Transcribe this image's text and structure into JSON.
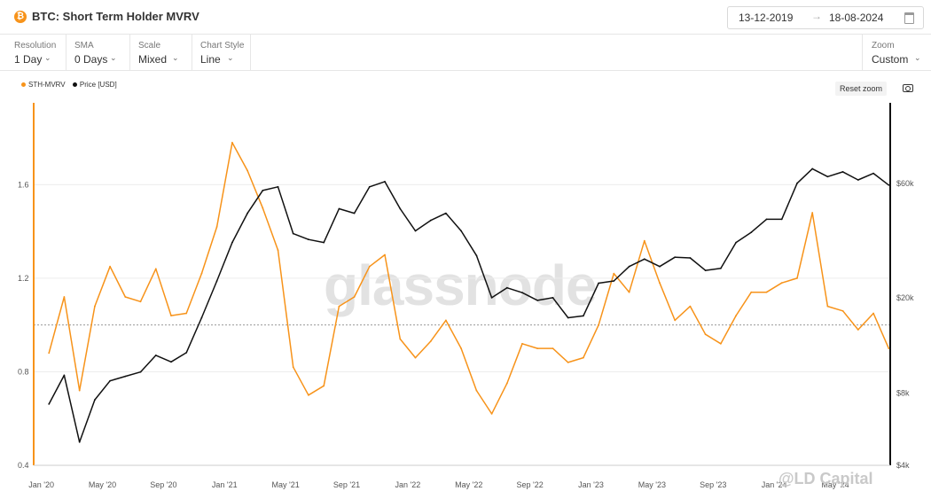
{
  "header": {
    "logo": "₿",
    "title": "BTC: Short Term Holder MVRV",
    "date_start": "13-12-2019",
    "date_arrow": "→",
    "date_end": "18-08-2024",
    "calendar_icon": "calendar-icon"
  },
  "controls": [
    {
      "label": "Resolution",
      "value": "1 Day"
    },
    {
      "label": "SMA",
      "value": "0 Days"
    },
    {
      "label": "Scale",
      "value": "Mixed"
    },
    {
      "label": "Chart Style",
      "value": "Line"
    }
  ],
  "zoom": {
    "label": "Zoom",
    "value": "Custom"
  },
  "reset_zoom": "Reset zoom",
  "watermark": "glassnode",
  "credit": "@LD Capital",
  "chart_data": {
    "type": "line",
    "title": "BTC: Short Term Holder MVRV",
    "x_ticks": [
      "Jan '20",
      "May '20",
      "Sep '20",
      "Jan '21",
      "May '21",
      "Sep '21",
      "Jan '22",
      "May '22",
      "Sep '22",
      "Jan '23",
      "May '23",
      "Sep '23",
      "Jan '24",
      "May '24"
    ],
    "y_left": {
      "ticks": [
        "0.4",
        "0.8",
        "1.2",
        "1.6"
      ],
      "range": [
        0.4,
        1.95
      ]
    },
    "y_right": {
      "scale": "log",
      "ticks": [
        "$4k",
        "$8k",
        "$20k",
        "$60k"
      ],
      "range": [
        4000,
        130000
      ]
    },
    "reference_line": 1.0,
    "colors": {
      "mvrv": "#f7931a",
      "price": "#111111"
    },
    "series": [
      {
        "name": "STH-MVRV",
        "axis": "left",
        "x": [
          "2020-01",
          "2020-02",
          "2020-03",
          "2020-04",
          "2020-05",
          "2020-06",
          "2020-07",
          "2020-08",
          "2020-09",
          "2020-10",
          "2020-11",
          "2020-12",
          "2021-01",
          "2021-02",
          "2021-03",
          "2021-04",
          "2021-05",
          "2021-06",
          "2021-07",
          "2021-08",
          "2021-09",
          "2021-10",
          "2021-11",
          "2021-12",
          "2022-01",
          "2022-02",
          "2022-03",
          "2022-04",
          "2022-05",
          "2022-06",
          "2022-07",
          "2022-08",
          "2022-09",
          "2022-10",
          "2022-11",
          "2022-12",
          "2023-01",
          "2023-02",
          "2023-03",
          "2023-04",
          "2023-05",
          "2023-06",
          "2023-07",
          "2023-08",
          "2023-09",
          "2023-10",
          "2023-11",
          "2023-12",
          "2024-01",
          "2024-02",
          "2024-03",
          "2024-04",
          "2024-05",
          "2024-06",
          "2024-07",
          "2024-08"
        ],
        "values": [
          0.88,
          1.12,
          0.72,
          1.08,
          1.25,
          1.12,
          1.1,
          1.24,
          1.04,
          1.05,
          1.22,
          1.42,
          1.78,
          1.66,
          1.5,
          1.32,
          0.82,
          0.7,
          0.74,
          1.08,
          1.12,
          1.25,
          1.3,
          0.94,
          0.86,
          0.93,
          1.02,
          0.9,
          0.72,
          0.62,
          0.75,
          0.92,
          0.9,
          0.9,
          0.84,
          0.86,
          1.0,
          1.22,
          1.14,
          1.36,
          1.18,
          1.02,
          1.08,
          0.96,
          0.92,
          1.04,
          1.14,
          1.14,
          1.18,
          1.2,
          1.48,
          1.08,
          1.06,
          0.98,
          1.05,
          0.9
        ]
      },
      {
        "name": "Price [USD]",
        "axis": "right",
        "x": [
          "2020-01",
          "2020-02",
          "2020-03",
          "2020-04",
          "2020-05",
          "2020-06",
          "2020-07",
          "2020-08",
          "2020-09",
          "2020-10",
          "2020-11",
          "2020-12",
          "2021-01",
          "2021-02",
          "2021-03",
          "2021-04",
          "2021-05",
          "2021-06",
          "2021-07",
          "2021-08",
          "2021-09",
          "2021-10",
          "2021-11",
          "2021-12",
          "2022-01",
          "2022-02",
          "2022-03",
          "2022-04",
          "2022-05",
          "2022-06",
          "2022-07",
          "2022-08",
          "2022-09",
          "2022-10",
          "2022-11",
          "2022-12",
          "2023-01",
          "2023-02",
          "2023-03",
          "2023-04",
          "2023-05",
          "2023-06",
          "2023-07",
          "2023-08",
          "2023-09",
          "2023-10",
          "2023-11",
          "2023-12",
          "2024-01",
          "2024-02",
          "2024-03",
          "2024-04",
          "2024-05",
          "2024-06",
          "2024-07",
          "2024-08"
        ],
        "values": [
          7200,
          9500,
          5000,
          7500,
          9000,
          9400,
          9800,
          11500,
          10800,
          11800,
          16500,
          23500,
          34000,
          45000,
          56000,
          58000,
          37000,
          35000,
          34000,
          47000,
          45000,
          58000,
          61000,
          47000,
          38000,
          42000,
          45000,
          38000,
          30000,
          20000,
          22000,
          21000,
          19500,
          20000,
          16500,
          16800,
          23000,
          23500,
          27000,
          29000,
          27000,
          29500,
          29300,
          26000,
          26500,
          34000,
          37500,
          42500,
          42500,
          60000,
          69000,
          64000,
          67000,
          62000,
          66000,
          59000
        ]
      }
    ]
  }
}
